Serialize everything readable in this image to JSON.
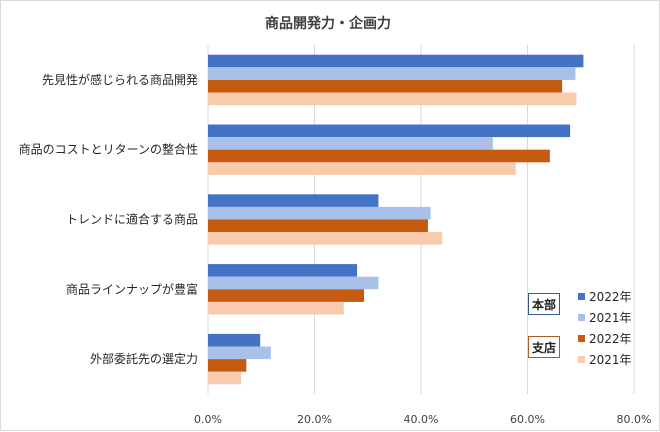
{
  "chart_data": {
    "type": "bar",
    "orientation": "horizontal",
    "title": "商品開発力・企画力",
    "categories": [
      "先見性が感じられる商品開発",
      "商品のコストとリターンの整合性",
      "トレンドに適合する商品",
      "商品ラインナップが豊富",
      "外部委託先の選定力"
    ],
    "series": [
      {
        "name": "2022年",
        "group": "本部",
        "color": "#4472c4",
        "values": [
          70.5,
          68.0,
          32.0,
          28.0,
          9.8
        ]
      },
      {
        "name": "2021年",
        "group": "本部",
        "color": "#a9c1e8",
        "values": [
          69.0,
          53.5,
          41.8,
          32.0,
          11.8
        ]
      },
      {
        "name": "2022年",
        "group": "支店",
        "color": "#c55a11",
        "values": [
          66.5,
          64.2,
          41.3,
          29.3,
          7.2
        ]
      },
      {
        "name": "2021年",
        "group": "支店",
        "color": "#f8cbad",
        "values": [
          69.2,
          57.8,
          44.0,
          25.5,
          6.2
        ]
      }
    ],
    "xlim": [
      0,
      80
    ],
    "xticks": [
      "0.0%",
      "20.0%",
      "40.0%",
      "60.0%",
      "80.0%"
    ],
    "xlabel": "",
    "ylabel": "",
    "grid": true,
    "legend": {
      "position": "bottom-right",
      "groups": [
        {
          "label": "本部",
          "entries": [
            "2022年",
            "2021年"
          ]
        },
        {
          "label": "支店",
          "entries": [
            "2022年",
            "2021年"
          ]
        }
      ]
    }
  }
}
